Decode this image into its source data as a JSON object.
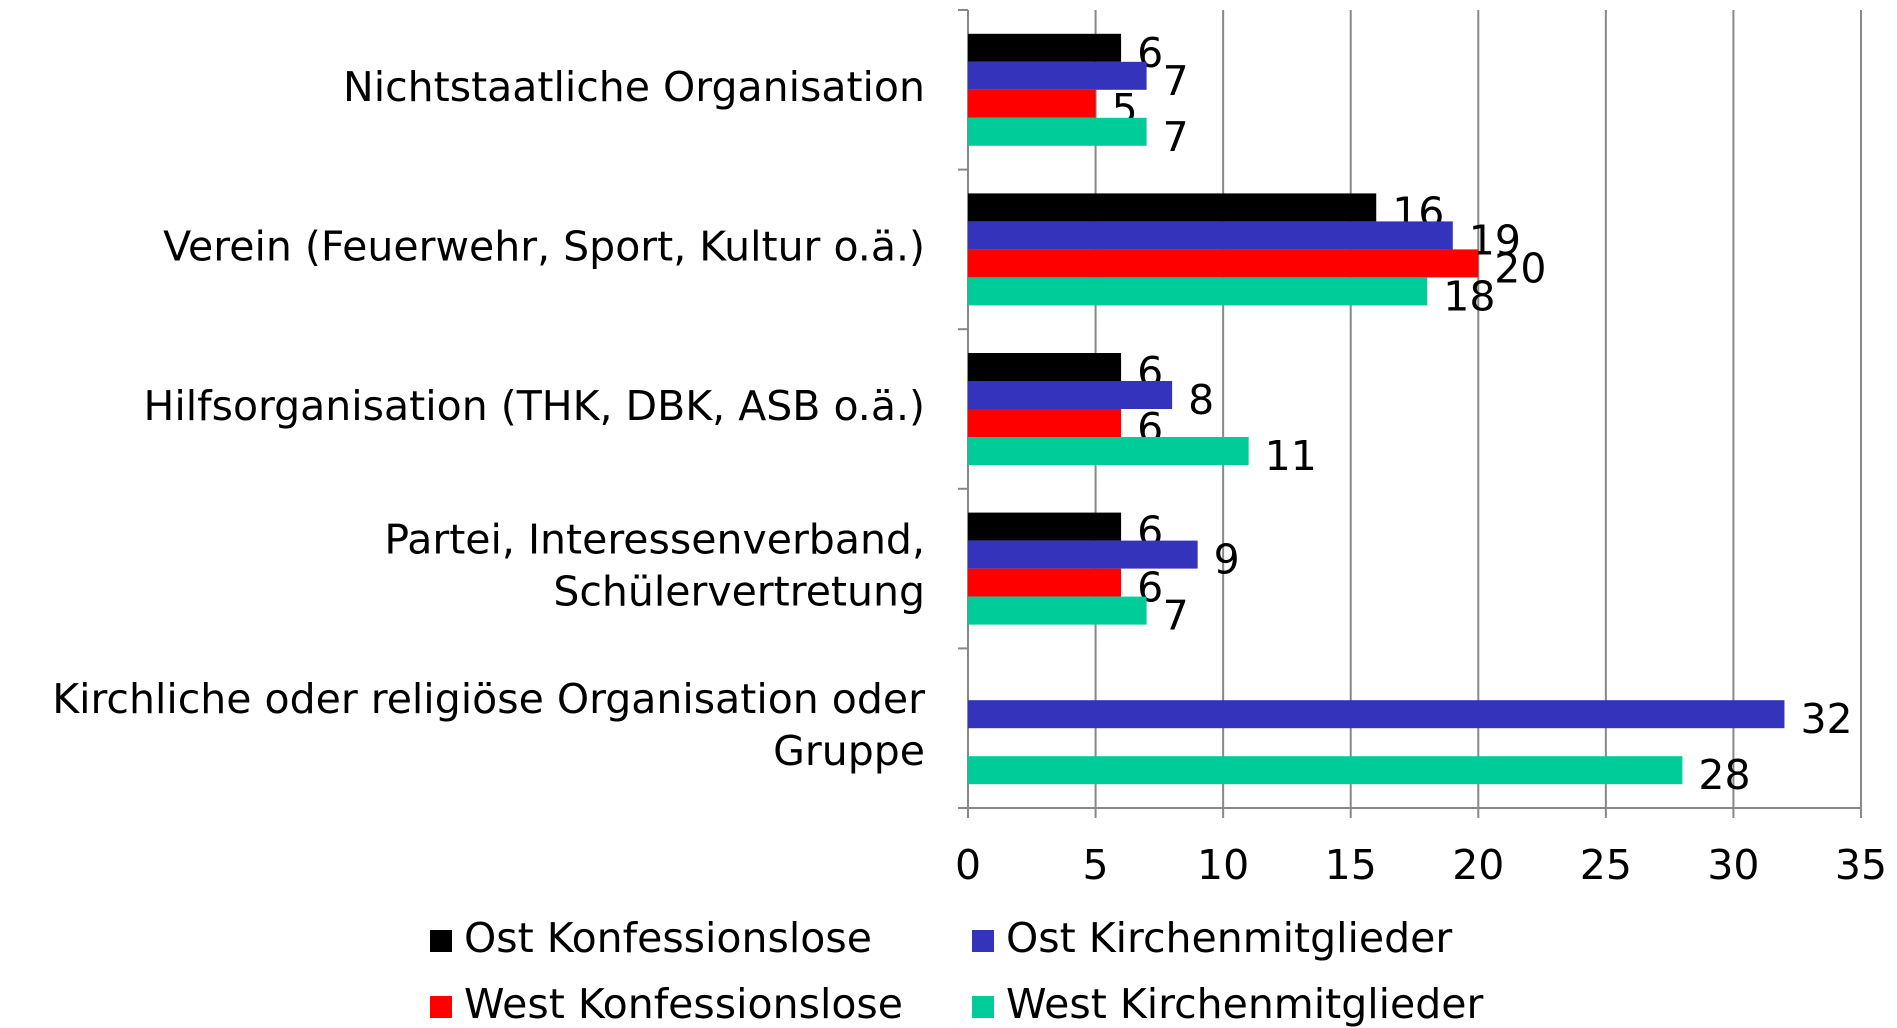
{
  "chart_data": {
    "type": "barh",
    "categories": [
      "Nichtstaatliche Organisation",
      "Verein (Feuerwehr, Sport, Kultur o.ä.)",
      "Hilfsorganisation (THK, DBK, ASB o.ä.)",
      "Partei, Interessenverband,\nSchülervertretung",
      "Kirchliche oder religiöse Organisation oder\nGruppe"
    ],
    "series": [
      {
        "name": "Ost Konfessionslose",
        "color": "#000000",
        "values": [
          6,
          16,
          6,
          6,
          null
        ]
      },
      {
        "name": "Ost Kirchenmitglieder",
        "color": "#3333bb",
        "values": [
          7,
          19,
          8,
          9,
          32
        ]
      },
      {
        "name": "West Konfessionslose",
        "color": "#ff0000",
        "values": [
          5,
          20,
          6,
          6,
          null
        ]
      },
      {
        "name": "West Kirchenmitglieder",
        "color": "#00cc99",
        "values": [
          7,
          18,
          11,
          7,
          28
        ]
      }
    ],
    "xlim": [
      0,
      35
    ],
    "xticks": [
      0,
      5,
      10,
      15,
      20,
      25,
      30,
      35
    ],
    "grid": true
  }
}
